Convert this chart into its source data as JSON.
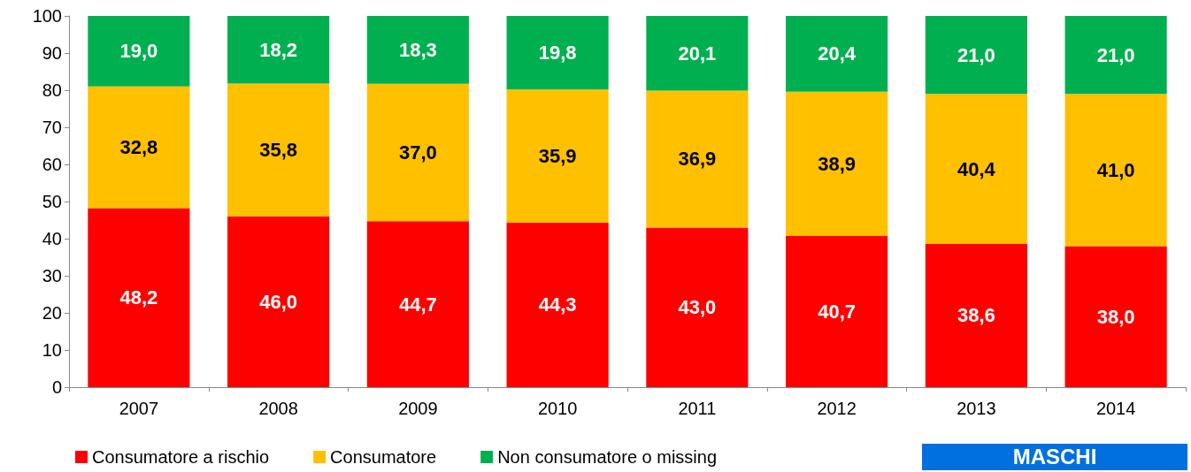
{
  "chart_data": {
    "type": "bar",
    "stacked": true,
    "categories": [
      "2007",
      "2008",
      "2009",
      "2010",
      "2011",
      "2012",
      "2013",
      "2014"
    ],
    "series": [
      {
        "name": "Consumatore a rischio",
        "color": "#ff0000",
        "values": [
          48.2,
          46.0,
          44.7,
          44.3,
          43.0,
          40.7,
          38.6,
          38.0
        ],
        "value_labels": [
          "48,2",
          "46,0",
          "44,7",
          "44,3",
          "43,0",
          "40,7",
          "38,6",
          "38,0"
        ]
      },
      {
        "name": "Consumatore",
        "color": "#ffc000",
        "values": [
          32.8,
          35.8,
          37.0,
          35.9,
          36.9,
          38.9,
          40.4,
          41.0
        ],
        "value_labels": [
          "32,8",
          "35,8",
          "37,0",
          "35,9",
          "36,9",
          "38,9",
          "40,4",
          "41,0"
        ]
      },
      {
        "name": "Non consumatore o missing",
        "color": "#00b050",
        "values": [
          19.0,
          18.2,
          18.3,
          19.8,
          20.1,
          20.4,
          21.0,
          21.0
        ],
        "value_labels": [
          "19,0",
          "18,2",
          "18,3",
          "19,8",
          "20,1",
          "20,4",
          "21,0",
          "21,0"
        ]
      }
    ],
    "ylim": [
      0,
      100
    ],
    "yticks": [
      0,
      10,
      20,
      30,
      40,
      50,
      60,
      70,
      80,
      90,
      100
    ],
    "grid": false,
    "legend": "bottom",
    "annotations": [
      "MASCHI"
    ]
  }
}
